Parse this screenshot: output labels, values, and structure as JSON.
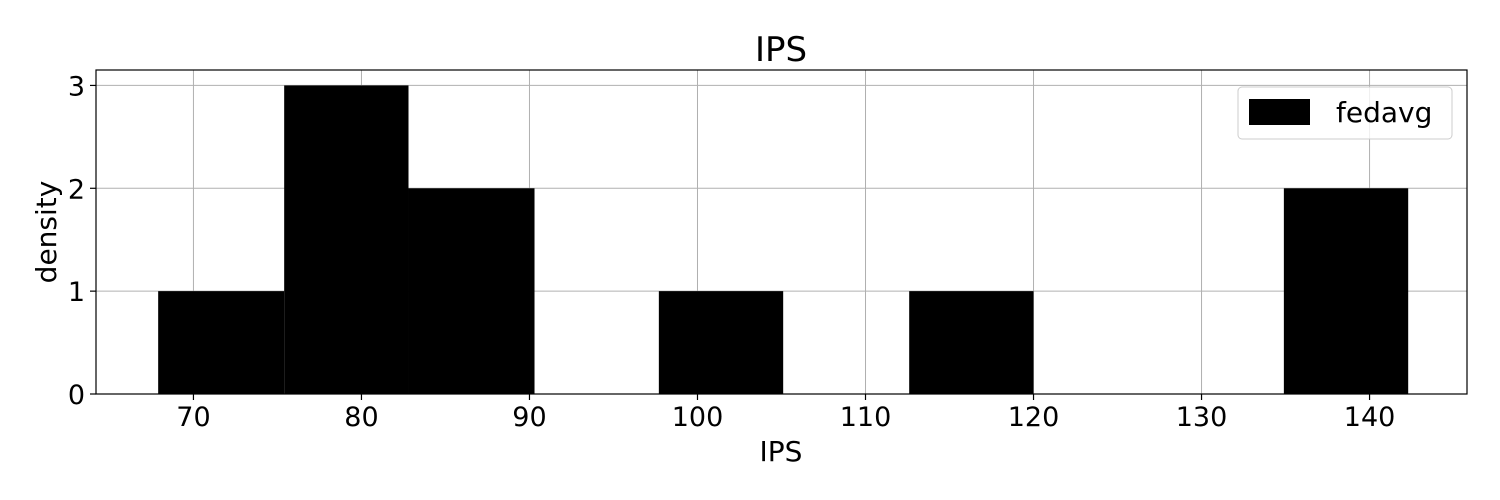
{
  "chart_data": {
    "type": "bar",
    "title": "IPS",
    "xlabel": "IPS",
    "ylabel": "density",
    "xlim": [
      64.2,
      145.8
    ],
    "ylim": [
      0,
      3.15
    ],
    "xticks": [
      70,
      80,
      90,
      100,
      110,
      120,
      130,
      140
    ],
    "yticks": [
      0,
      1,
      2,
      3
    ],
    "grid": true,
    "legend_position": "top-right",
    "bar_color": "#000000",
    "series": [
      {
        "name": "fedavg",
        "bins": [
          {
            "x0": 67.9,
            "x1": 75.4,
            "value": 1
          },
          {
            "x0": 75.4,
            "x1": 82.8,
            "value": 3
          },
          {
            "x0": 82.8,
            "x1": 90.3,
            "value": 2
          },
          {
            "x0": 90.3,
            "x1": 97.7,
            "value": 0
          },
          {
            "x0": 97.7,
            "x1": 105.1,
            "value": 1
          },
          {
            "x0": 105.1,
            "x1": 112.6,
            "value": 0
          },
          {
            "x0": 112.6,
            "x1": 120.0,
            "value": 1
          },
          {
            "x0": 120.0,
            "x1": 127.4,
            "value": 0
          },
          {
            "x0": 127.4,
            "x1": 134.9,
            "value": 0
          },
          {
            "x0": 134.9,
            "x1": 142.3,
            "value": 2
          }
        ]
      }
    ]
  }
}
